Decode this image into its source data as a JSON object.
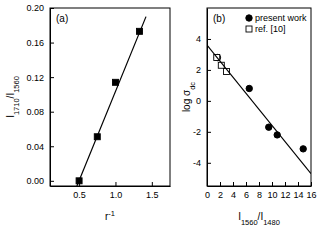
{
  "chart_data": [
    {
      "type": "scatter",
      "title": "(a)",
      "x_label": "r-1",
      "y_label": "I1710/I1560",
      "xlim": [
        0.1,
        1.75
      ],
      "ylim": [
        -0.006,
        0.2
      ],
      "xticks": [
        0.5,
        {
          "value": 1.0,
          "label": "1.0"
        },
        1.5
      ],
      "yticks": [
        {
          "value": 0,
          "label": "0.00"
        },
        {
          "value": 0.04,
          "label": "0.04"
        },
        {
          "value": 0.08,
          "label": "0.08"
        },
        {
          "value": 0.12,
          "label": "0.12"
        },
        {
          "value": 0.16,
          "label": "0.16"
        },
        {
          "value": 0.2,
          "label": "0.20"
        }
      ],
      "series": [
        {
          "type": "scatter",
          "marker": "square",
          "color": "#000000",
          "x": [
            0.5,
            0.75,
            1.0,
            1.33
          ],
          "values": [
            0.0,
            0.051,
            0.114,
            0.173
          ]
        },
        {
          "type": "line",
          "line_style": "solid",
          "color": "#000000",
          "x": [
            0.47,
            1.42
          ],
          "values": [
            -0.006,
            0.19
          ]
        }
      ]
    },
    {
      "type": "scatter",
      "title": "(b)",
      "x_label": "I1560/I1480",
      "y_label": "log σdc",
      "xlim": [
        0,
        16
      ],
      "ylim": [
        -5.5,
        6
      ],
      "xticks": [
        0,
        2,
        4,
        6,
        8,
        10,
        12,
        14,
        16
      ],
      "yticks": [
        -4,
        -2,
        0,
        2,
        4
      ],
      "legend": "top-right",
      "series": [
        {
          "name": "present work",
          "type": "scatter",
          "marker": "circle",
          "color": "#000000",
          "x": [
            1.6,
            6.5,
            9.5,
            10.8,
            14.8
          ],
          "values": [
            2.8,
            0.8,
            -1.7,
            -2.2,
            -3.1
          ]
        },
        {
          "name": "ref. [10]",
          "type": "scatter",
          "marker": "open-square",
          "color": "#000000",
          "x": [
            1.5,
            2.2,
            3.0
          ],
          "values": [
            2.8,
            2.3,
            1.9
          ]
        },
        {
          "type": "line",
          "line_style": "solid",
          "color": "#000000",
          "x": [
            0,
            16
          ],
          "values": [
            3.6,
            -4.7
          ]
        }
      ]
    }
  ]
}
